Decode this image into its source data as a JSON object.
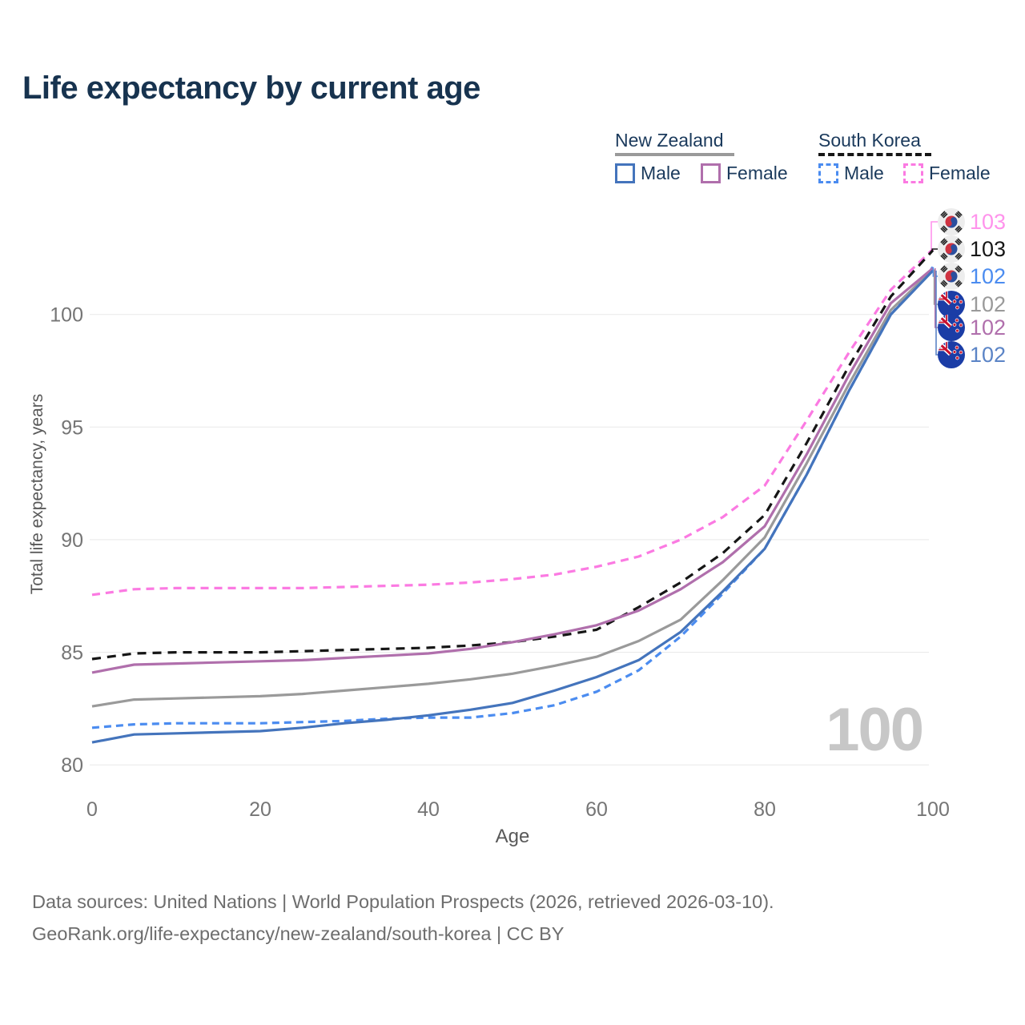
{
  "title": "Life expectancy by current age",
  "legend": {
    "groups": [
      {
        "label": "New Zealand",
        "line_style": "solid",
        "line_color": "#9a9a9a",
        "items": [
          {
            "label": "Male",
            "color": "#4474bc",
            "dash": false
          },
          {
            "label": "Female",
            "color": "#b06fac",
            "dash": false
          }
        ]
      },
      {
        "label": "South Korea",
        "line_style": "dashed",
        "line_color": "#161616",
        "items": [
          {
            "label": "Male",
            "color": "#4b8cf0",
            "dash": true
          },
          {
            "label": "Female",
            "color": "#fb7ae2",
            "dash": true
          }
        ]
      }
    ]
  },
  "watermark": {
    "text": "100"
  },
  "chart_data": {
    "type": "line",
    "title": "Life expectancy by current age",
    "xlabel": "Age",
    "ylabel": "Total life expectancy, years",
    "xlim": [
      0,
      100
    ],
    "ylim": [
      79.5,
      104.5
    ],
    "x_ticks": [
      0,
      20,
      40,
      60,
      80,
      100
    ],
    "y_ticks": [
      80,
      85,
      90,
      95,
      100
    ],
    "grid": "horizontal",
    "legend_position": "top-right",
    "x": [
      0,
      5,
      10,
      15,
      20,
      25,
      30,
      35,
      40,
      45,
      50,
      55,
      60,
      65,
      70,
      75,
      80,
      85,
      90,
      95,
      100
    ],
    "series": [
      {
        "name": "South Korea Female",
        "country": "South Korea",
        "sex": "Female",
        "color": "#fb7ae2",
        "dash": "10 7",
        "values": [
          87.55,
          87.8,
          87.85,
          87.85,
          87.85,
          87.85,
          87.9,
          87.95,
          88.0,
          88.1,
          88.25,
          88.45,
          88.8,
          89.25,
          90.0,
          91.0,
          92.4,
          95.3,
          98.3,
          101.1,
          102.9
        ]
      },
      {
        "name": "South Korea Total",
        "country": "South Korea",
        "sex": "Both",
        "color": "#161616",
        "dash": "11 8",
        "values": [
          84.7,
          84.95,
          85.0,
          85.0,
          85.0,
          85.05,
          85.1,
          85.15,
          85.2,
          85.3,
          85.45,
          85.7,
          86.0,
          87.0,
          88.1,
          89.4,
          91.1,
          94.3,
          97.7,
          100.8,
          102.85
        ]
      },
      {
        "name": "South Korea Male",
        "country": "South Korea",
        "sex": "Male",
        "color": "#4b8cf0",
        "dash": "9 6",
        "values": [
          81.65,
          81.8,
          81.85,
          81.85,
          81.85,
          81.9,
          81.95,
          82.05,
          82.1,
          82.1,
          82.3,
          82.65,
          83.25,
          84.2,
          85.7,
          87.6,
          89.6,
          92.9,
          96.6,
          100.0,
          102.1
        ]
      },
      {
        "name": "New Zealand Total",
        "country": "New Zealand",
        "sex": "Both",
        "color": "#9a9a9a",
        "dash": null,
        "values": [
          82.6,
          82.9,
          82.95,
          83.0,
          83.05,
          83.15,
          83.3,
          83.45,
          83.6,
          83.8,
          84.05,
          84.4,
          84.8,
          85.5,
          86.45,
          88.2,
          90.1,
          93.4,
          96.9,
          100.2,
          102.0
        ]
      },
      {
        "name": "New Zealand Female",
        "country": "New Zealand",
        "sex": "Female",
        "color": "#b06fac",
        "dash": null,
        "values": [
          84.1,
          84.45,
          84.5,
          84.55,
          84.6,
          84.65,
          84.75,
          84.85,
          84.95,
          85.15,
          85.45,
          85.8,
          86.2,
          86.85,
          87.8,
          89.0,
          90.6,
          93.8,
          97.3,
          100.5,
          102.05
        ]
      },
      {
        "name": "New Zealand Male",
        "country": "New Zealand",
        "sex": "Male",
        "color": "#4474bc",
        "dash": null,
        "values": [
          81.0,
          81.35,
          81.4,
          81.45,
          81.5,
          81.65,
          81.85,
          82.0,
          82.2,
          82.45,
          82.75,
          83.3,
          83.9,
          84.65,
          85.9,
          87.7,
          89.6,
          92.9,
          96.6,
          100.0,
          101.95
        ]
      }
    ]
  },
  "end_labels": [
    {
      "flag": "south-korea-flag-icon",
      "series": "South Korea Female",
      "value": "103",
      "color": "#ff93ec",
      "line_end": 102.9
    },
    {
      "flag": "south-korea-flag-icon",
      "series": "South Korea Total",
      "value": "103",
      "color": "#161616",
      "line_end": 102.85
    },
    {
      "flag": "south-korea-flag-icon",
      "series": "South Korea Male",
      "value": "102",
      "color": "#4b8cf0",
      "line_end": 102.1
    },
    {
      "flag": "new-zealand-flag-icon",
      "series": "New Zealand Total",
      "value": "102",
      "color": "#9a9a9a",
      "line_end": 102.0
    },
    {
      "flag": "new-zealand-flag-icon",
      "series": "New Zealand Female",
      "value": "102",
      "color": "#b06fac",
      "line_end": 102.05
    },
    {
      "flag": "new-zealand-flag-icon",
      "series": "New Zealand Male",
      "value": "102",
      "color": "#5b84c6",
      "line_end": 101.95
    }
  ],
  "footer": {
    "line1": "Data sources: United Nations | World Population Prospects (2026, retrieved 2026-03-10).",
    "line2": "GeoRank.org/life-expectancy/new-zealand/south-korea | CC BY"
  }
}
